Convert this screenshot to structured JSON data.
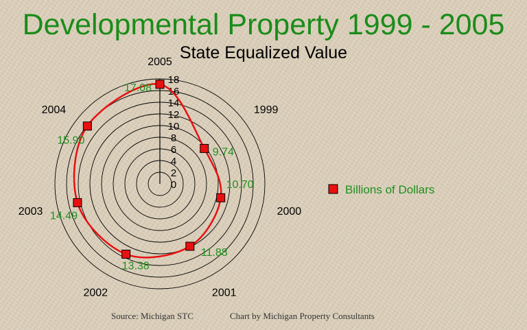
{
  "chart_data": {
    "type": "radar",
    "title": "Developmental Property 1999 - 2005",
    "subtitle": "State Equalized Value",
    "categories": [
      "1999",
      "2000",
      "2001",
      "2002",
      "2003",
      "2004",
      "2005"
    ],
    "series": [
      {
        "name": "Billions of Dollars",
        "values": [
          9.74,
          10.7,
          11.88,
          13.38,
          14.49,
          15.9,
          17.08
        ],
        "data_labels": [
          "9.74",
          "10.70",
          "11.88",
          "13.38",
          "14.49",
          "15.90",
          "17.08"
        ]
      }
    ],
    "radial_ticks": [
      "0",
      "2",
      "4",
      "6",
      "8",
      "10",
      "12",
      "14",
      "16",
      "18"
    ],
    "rmin": 0,
    "rmax": 18,
    "grid": true,
    "legend_position": "right"
  },
  "colors": {
    "title": "#1a8c1a",
    "series": "#e81010",
    "data_label": "#1f8f1f",
    "grid": "#000000",
    "text": "#000000"
  },
  "footer": {
    "source": "Source:  Michigan STC",
    "credit": "Chart by Michigan Property Consultants"
  }
}
